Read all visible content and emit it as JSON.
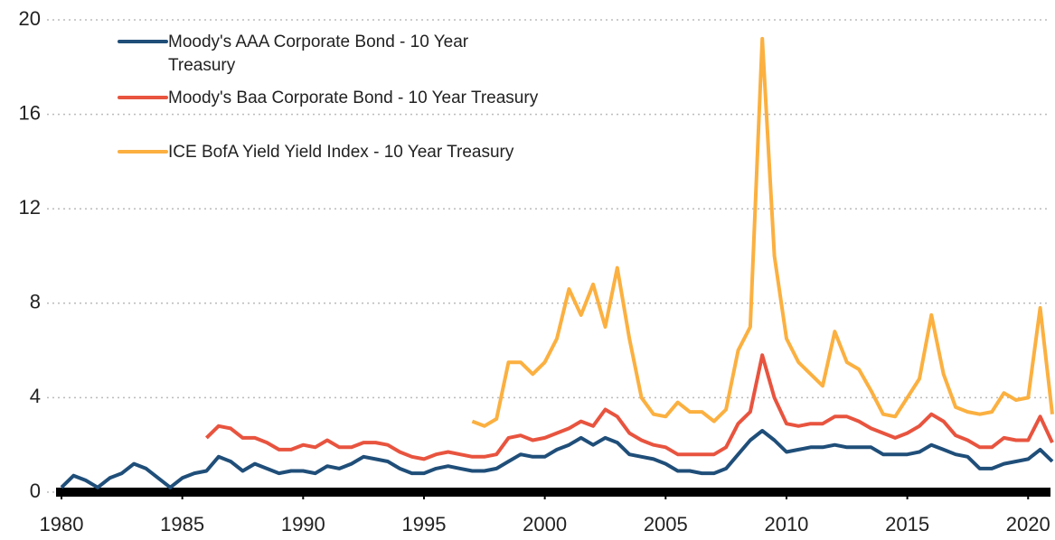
{
  "chart_data": {
    "type": "line",
    "x": [
      1980,
      1980.5,
      1981,
      1981.5,
      1982,
      1982.5,
      1983,
      1983.5,
      1984,
      1984.5,
      1985,
      1985.5,
      1986,
      1986.5,
      1987,
      1987.5,
      1988,
      1988.5,
      1989,
      1989.5,
      1990,
      1990.5,
      1991,
      1991.5,
      1992,
      1992.5,
      1993,
      1993.5,
      1994,
      1994.5,
      1995,
      1995.5,
      1996,
      1996.5,
      1997,
      1997.5,
      1998,
      1998.5,
      1999,
      1999.5,
      2000,
      2000.5,
      2001,
      2001.5,
      2002,
      2002.5,
      2003,
      2003.5,
      2004,
      2004.5,
      2005,
      2005.5,
      2006,
      2006.5,
      2007,
      2007.5,
      2008,
      2008.5,
      2009,
      2009.5,
      2010,
      2010.5,
      2011,
      2011.5,
      2012,
      2012.5,
      2013,
      2013.5,
      2014,
      2014.5,
      2015,
      2015.5,
      2016,
      2016.5,
      2017,
      2017.5,
      2018,
      2018.5,
      2019,
      2019.5,
      2020,
      2020.5,
      2021
    ],
    "series": [
      {
        "name": "Moody's AAA Corporate Bond - 10 Year Treasury",
        "color": "#1f4e79",
        "values": [
          0.2,
          0.7,
          0.5,
          0.2,
          0.6,
          0.8,
          1.2,
          1.0,
          0.6,
          0.2,
          0.6,
          0.8,
          0.9,
          1.5,
          1.3,
          0.9,
          1.2,
          1.0,
          0.8,
          0.9,
          0.9,
          0.8,
          1.1,
          1.0,
          1.2,
          1.5,
          1.4,
          1.3,
          1.0,
          0.8,
          0.8,
          1.0,
          1.1,
          1.0,
          0.9,
          0.9,
          1.0,
          1.3,
          1.6,
          1.5,
          1.5,
          1.8,
          2.0,
          2.3,
          2.0,
          2.3,
          2.1,
          1.6,
          1.5,
          1.4,
          1.2,
          0.9,
          0.9,
          0.8,
          0.8,
          1.0,
          1.6,
          2.2,
          2.6,
          2.2,
          1.7,
          1.8,
          1.9,
          1.9,
          2.0,
          1.9,
          1.9,
          1.9,
          1.6,
          1.6,
          1.6,
          1.7,
          2.0,
          1.8,
          1.6,
          1.5,
          1.0,
          1.0,
          1.2,
          1.3,
          1.4,
          1.8,
          1.3
        ]
      },
      {
        "name": "Moody's Baa Corporate Bond - 10 Year Treasury",
        "color": "#e8543f",
        "values": [
          null,
          null,
          null,
          null,
          null,
          null,
          null,
          null,
          null,
          null,
          null,
          null,
          2.3,
          2.8,
          2.7,
          2.3,
          2.3,
          2.1,
          1.8,
          1.8,
          2.0,
          1.9,
          2.2,
          1.9,
          1.9,
          2.1,
          2.1,
          2.0,
          1.7,
          1.5,
          1.4,
          1.6,
          1.7,
          1.6,
          1.5,
          1.5,
          1.6,
          2.3,
          2.4,
          2.2,
          2.3,
          2.5,
          2.7,
          3.0,
          2.8,
          3.5,
          3.2,
          2.5,
          2.2,
          2.0,
          1.9,
          1.6,
          1.6,
          1.6,
          1.6,
          1.9,
          2.9,
          3.4,
          5.8,
          4.0,
          2.9,
          2.8,
          2.9,
          2.9,
          3.2,
          3.2,
          3.0,
          2.7,
          2.5,
          2.3,
          2.5,
          2.8,
          3.3,
          3.0,
          2.4,
          2.2,
          1.9,
          1.9,
          2.3,
          2.2,
          2.2,
          3.2,
          2.1
        ]
      },
      {
        "name": "ICE BofA Yield Yield Index - 10 Year Treasury",
        "color": "#fbb040",
        "values": [
          null,
          null,
          null,
          null,
          null,
          null,
          null,
          null,
          null,
          null,
          null,
          null,
          null,
          null,
          null,
          null,
          null,
          null,
          null,
          null,
          null,
          null,
          null,
          null,
          null,
          null,
          null,
          null,
          null,
          null,
          null,
          null,
          null,
          null,
          3.0,
          2.8,
          3.1,
          5.5,
          5.5,
          5.0,
          5.5,
          6.5,
          8.6,
          7.5,
          8.8,
          7.0,
          9.5,
          6.5,
          4.0,
          3.3,
          3.2,
          3.8,
          3.4,
          3.4,
          3.0,
          3.5,
          6.0,
          7.0,
          19.2,
          10.0,
          6.5,
          5.5,
          5.0,
          4.5,
          6.8,
          5.5,
          5.2,
          4.3,
          3.3,
          3.2,
          4.0,
          4.8,
          7.5,
          5.0,
          3.6,
          3.4,
          3.3,
          3.4,
          4.2,
          3.9,
          4.0,
          7.8,
          3.3
        ]
      }
    ],
    "xlim": [
      1980,
      2021
    ],
    "xticks": [
      1980,
      1985,
      1990,
      1995,
      2000,
      2005,
      2010,
      2015,
      2020
    ],
    "ylim": [
      0,
      20
    ],
    "yticks": [
      0,
      4,
      8,
      12,
      16,
      20
    ],
    "grid": true,
    "legend": "top-left"
  }
}
